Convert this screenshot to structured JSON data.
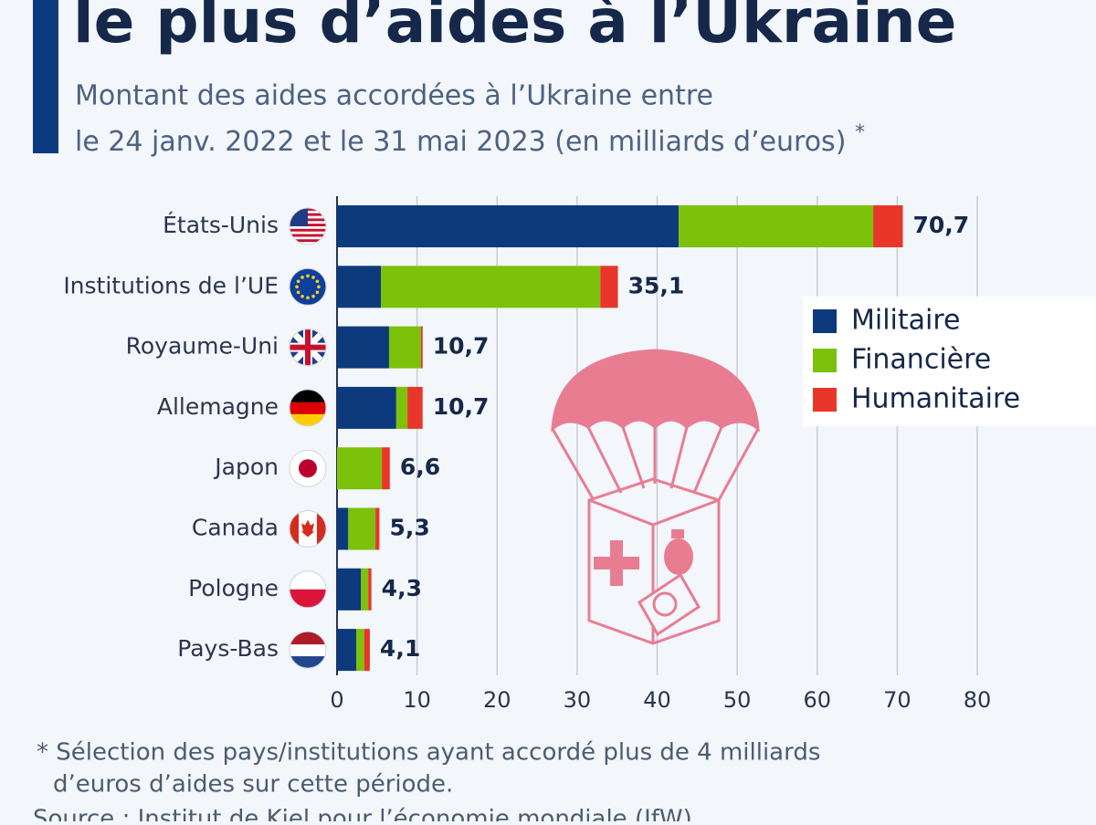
{
  "chart_data": {
    "type": "stacked-barh",
    "title": "le plus d’aides à l’Ukraine",
    "subtitle": [
      "Montant des aides accordées à l’Ukraine entre",
      "le 24 janv. 2022 et le 31 mai 2023 (en milliards d’euros)"
    ],
    "subtitle_mark": "*",
    "categories": [
      "États-Unis",
      "Institutions de l’UE",
      "Royaume-Uni",
      "Allemagne",
      "Japon",
      "Canada",
      "Pologne",
      "Pays-Bas"
    ],
    "series": [
      {
        "name": "Militaire",
        "color": "#0c3a7d",
        "values": [
          42.7,
          5.5,
          6.5,
          7.4,
          0,
          1.4,
          3.0,
          2.4
        ]
      },
      {
        "name": "Financière",
        "color": "#7cc10a",
        "values": [
          24.3,
          27.4,
          4.0,
          1.4,
          5.6,
          3.4,
          0.9,
          1.0
        ]
      },
      {
        "name": "Humanitaire",
        "color": "#e8372a",
        "values": [
          3.7,
          2.2,
          0.2,
          1.9,
          1.0,
          0.5,
          0.4,
          0.7
        ]
      }
    ],
    "totals": {
      "values": [
        70.7,
        35.1,
        10.7,
        10.7,
        6.6,
        5.3,
        4.3,
        4.1
      ],
      "value_labels": [
        "70,7",
        "35,1",
        "10,7",
        "10,7",
        "6,6",
        "5,3",
        "4,3",
        "4,1"
      ]
    },
    "xlim": [
      0,
      80
    ],
    "xticks": [
      0,
      10,
      20,
      30,
      40,
      50,
      60,
      70,
      80
    ],
    "grid": true,
    "legend": "right",
    "footnote": [
      "* Sélection des pays/institutions ayant accordé plus de 4 milliards",
      "d’euros d’aides sur cette période."
    ],
    "source": "Source : Institut de Kiel pour l’économie mondiale (IfW)"
  }
}
